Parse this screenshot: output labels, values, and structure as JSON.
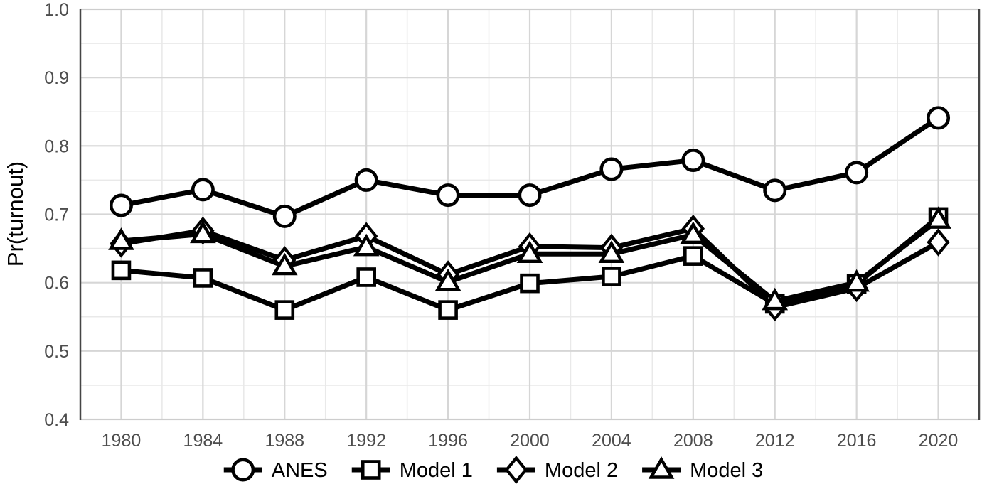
{
  "chart_data": {
    "type": "line",
    "title": "",
    "xlabel": "",
    "ylabel": "Pr(turnout)",
    "x": [
      1980,
      1984,
      1988,
      1992,
      1996,
      2000,
      2004,
      2008,
      2012,
      2016,
      2020
    ],
    "x_tick_labels": [
      "1980",
      "1984",
      "1988",
      "1992",
      "1996",
      "2000",
      "2004",
      "2008",
      "2012",
      "2016",
      "2020"
    ],
    "y_ticks": [
      0.4,
      0.5,
      0.6,
      0.7,
      0.8,
      0.9,
      1.0
    ],
    "y_tick_labels": [
      "0.4",
      "0.5",
      "0.6",
      "0.7",
      "0.8",
      "0.9",
      "1.0"
    ],
    "xlim": [
      1978,
      2022
    ],
    "ylim": [
      0.4,
      1.0
    ],
    "y_minor_step": 0.05,
    "x_minor_step": 2,
    "grid": "major+minor",
    "legend_position": "bottom",
    "series": [
      {
        "name": "ANES",
        "marker": "circle",
        "values": [
          0.713,
          0.736,
          0.697,
          0.75,
          0.728,
          0.728,
          0.766,
          0.779,
          0.735,
          0.761,
          0.841
        ]
      },
      {
        "name": "Model 1",
        "marker": "square",
        "values": [
          0.618,
          0.607,
          0.56,
          0.608,
          0.56,
          0.599,
          0.609,
          0.639,
          0.569,
          0.598,
          0.696
        ]
      },
      {
        "name": "Model 2",
        "marker": "diamond",
        "values": [
          0.657,
          0.676,
          0.633,
          0.668,
          0.612,
          0.653,
          0.651,
          0.679,
          0.564,
          0.592,
          0.659
        ]
      },
      {
        "name": "Model 3",
        "marker": "triangle",
        "values": [
          0.661,
          0.671,
          0.624,
          0.652,
          0.601,
          0.642,
          0.642,
          0.67,
          0.573,
          0.6,
          0.692
        ]
      }
    ],
    "colors": {
      "series_line": "#000000",
      "marker_fill": "#ffffff",
      "grid_major": "#d6d6d6",
      "grid_minor": "#e9e9e9",
      "axis_text": "#4d4d4d",
      "panel_side_border": "#454545",
      "panel_top_bottom_border": "#cdcdcd",
      "background": "#ffffff"
    }
  }
}
